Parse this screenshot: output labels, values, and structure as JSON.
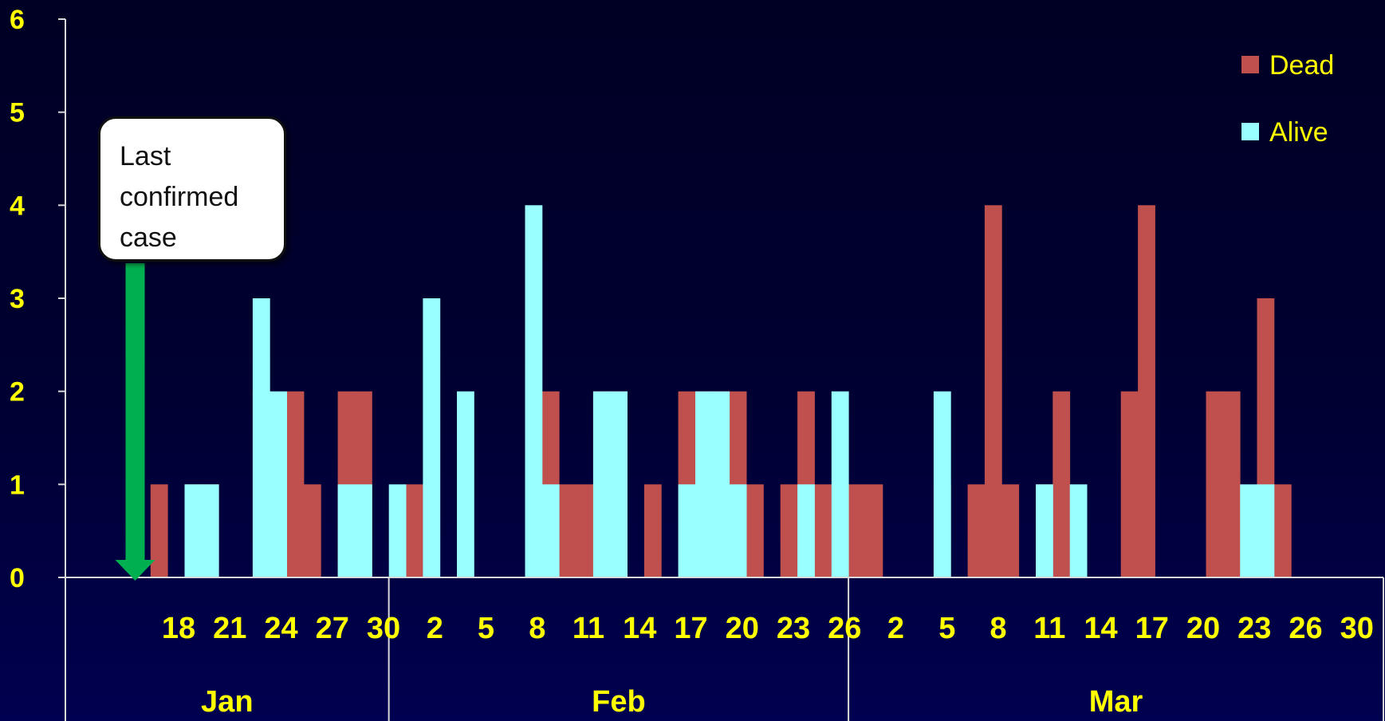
{
  "chart_data": {
    "type": "bar",
    "stacked": true,
    "yticks": [
      "0",
      "1",
      "2",
      "3",
      "4",
      "5",
      "6"
    ],
    "ylim": [
      0,
      6
    ],
    "x_tick_labels": [
      "18",
      "21",
      "24",
      "27",
      "30",
      "2",
      "5",
      "8",
      "11",
      "14",
      "17",
      "20",
      "23",
      "26",
      "2",
      "5",
      "8",
      "11",
      "14",
      "17",
      "20",
      "23",
      "26",
      "30"
    ],
    "months": [
      {
        "label": "Jan",
        "start_day": 13,
        "end_day": 31
      },
      {
        "label": "Feb",
        "start_day": 32,
        "end_day": 58
      },
      {
        "label": "Mar",
        "start_day": 59,
        "end_day": 89
      }
    ],
    "series": [
      {
        "name": "Dead",
        "color": "#c0504d",
        "points": [
          [
            18,
            1
          ],
          [
            20,
            1
          ],
          [
            21,
            1
          ],
          [
            24,
            2
          ],
          [
            25,
            1
          ],
          [
            26,
            2
          ],
          [
            27,
            1
          ],
          [
            29,
            2
          ],
          [
            30,
            2
          ],
          [
            33,
            1
          ],
          [
            41,
            2
          ],
          [
            42,
            1
          ],
          [
            43,
            1
          ],
          [
            44,
            2
          ],
          [
            45,
            2
          ],
          [
            47,
            1
          ],
          [
            49,
            2
          ],
          [
            50,
            2
          ],
          [
            51,
            2
          ],
          [
            52,
            2
          ],
          [
            53,
            1
          ],
          [
            55,
            1
          ],
          [
            56,
            2
          ],
          [
            57,
            1
          ],
          [
            58,
            1
          ],
          [
            59,
            1
          ],
          [
            60,
            1
          ],
          [
            64,
            1
          ],
          [
            66,
            1
          ],
          [
            67,
            4
          ],
          [
            68,
            1
          ],
          [
            70,
            1
          ],
          [
            71,
            2
          ],
          [
            75,
            2
          ],
          [
            76,
            4
          ],
          [
            80,
            2
          ],
          [
            81,
            2
          ],
          [
            83,
            3
          ],
          [
            84,
            1
          ]
        ]
      },
      {
        "name": "Alive",
        "color": "#99ffff",
        "points": [
          [
            20,
            1
          ],
          [
            21,
            1
          ],
          [
            24,
            3
          ],
          [
            25,
            2
          ],
          [
            29,
            1
          ],
          [
            30,
            1
          ],
          [
            32,
            1
          ],
          [
            34,
            3
          ],
          [
            36,
            2
          ],
          [
            40,
            4
          ],
          [
            41,
            1
          ],
          [
            44,
            2
          ],
          [
            45,
            2
          ],
          [
            49,
            1
          ],
          [
            50,
            2
          ],
          [
            51,
            2
          ],
          [
            52,
            1
          ],
          [
            56,
            1
          ],
          [
            58,
            2
          ],
          [
            64,
            2
          ],
          [
            70,
            1
          ],
          [
            72,
            1
          ],
          [
            82,
            1
          ],
          [
            83,
            1
          ]
        ]
      }
    ],
    "legend": {
      "position": "top-right",
      "entries": [
        "Dead",
        "Alive"
      ]
    },
    "annotation": {
      "lines": [
        "Last",
        "confirmed",
        "case"
      ],
      "arrow_day": 17,
      "arrow_color": "#00b050"
    }
  }
}
